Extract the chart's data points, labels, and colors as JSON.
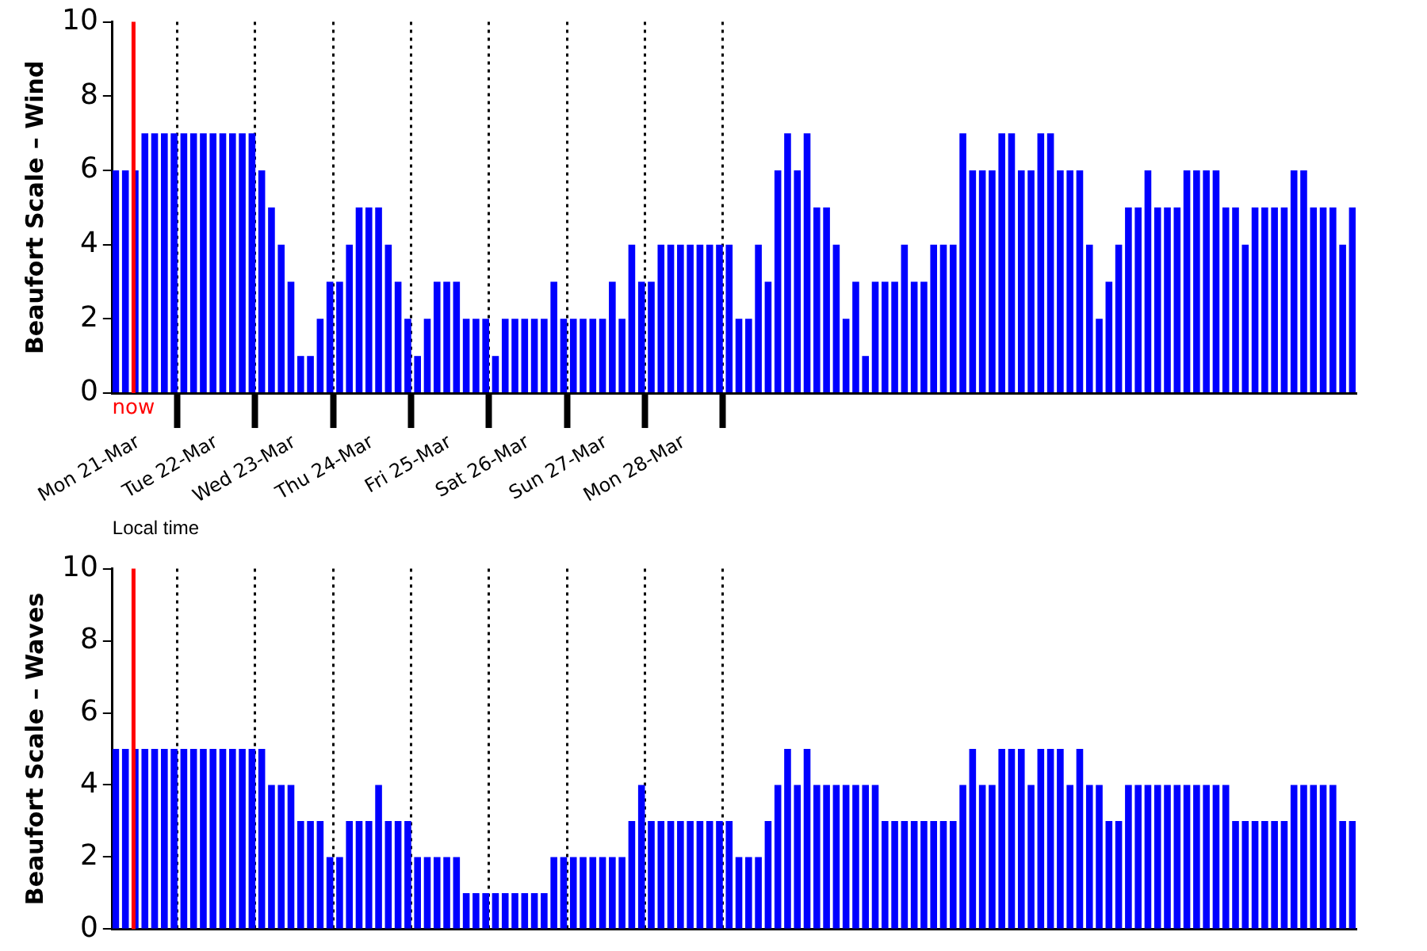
{
  "chart_data": [
    {
      "type": "bar",
      "ylabel": "Beaufort Scale – Wind",
      "xlabel": "Local time",
      "color": "#0000ff",
      "x": [
        "--03-20T17:00",
        "--03-20T20:00",
        "--03-20T23:00",
        "--03-21T02:00",
        "--03-21T05:00",
        "--03-21T08:00",
        "--03-21T11:00",
        "--03-21T14:00",
        "--03-21T17:00",
        "--03-21T20:00",
        "--03-21T23:00",
        "--03-22T02:00",
        "--03-22T05:00",
        "--03-22T08:00",
        "--03-22T11:00",
        "--03-22T14:00",
        "--03-22T17:00",
        "--03-22T20:00",
        "--03-22T23:00",
        "--03-23T02:00",
        "--03-23T05:00",
        "--03-23T08:00",
        "--03-23T11:00",
        "--03-23T14:00",
        "--03-23T17:00",
        "--03-23T20:00",
        "--03-23T23:00",
        "--03-24T02:00",
        "--03-24T05:00",
        "--03-24T08:00",
        "--03-24T11:00",
        "--03-24T14:00",
        "--03-24T17:00",
        "--03-24T20:00",
        "--03-24T23:00",
        "--03-25T02:00",
        "--03-25T05:00",
        "--03-25T08:00",
        "--03-25T11:00",
        "--03-25T14:00",
        "--03-25T17:00",
        "--03-25T20:00",
        "--03-25T23:00",
        "--03-26T02:00",
        "--03-26T05:00",
        "--03-26T08:00",
        "--03-26T11:00",
        "--03-26T14:00",
        "--03-26T17:00",
        "--03-26T20:00",
        "--03-26T23:00",
        "--03-27T02:00",
        "--03-27T05:00",
        "--03-27T08:00",
        "--03-27T11:00",
        "--03-27T14:00",
        "--03-27T17:00",
        "--03-27T20:00",
        "--03-27T23:00",
        "--03-28T02:00",
        "--03-28T05:00",
        "--03-28T08:00",
        "--03-28T11:00",
        "--03-28T14:00",
        "--03-28T17:00",
        "--03-28T20:00",
        "--03-28T23:00",
        "--03-29T02:00",
        "--03-29T05:00",
        "--03-29T08:00",
        "--03-29T11:00",
        "--03-29T14:00",
        "--03-29T17:00",
        "--03-29T20:00",
        "--03-29T23:00",
        "--03-30T02:00",
        "--03-30T05:00",
        "--03-30T08:00",
        "--03-30T11:00",
        "--03-30T14:00",
        "--03-30T17:00",
        "--03-30T20:00",
        "--03-30T23:00",
        "--03-31T02:00",
        "--03-31T05:00",
        "--03-31T08:00",
        "--03-31T11:00",
        "--03-31T14:00",
        "--03-31T17:00",
        "--03-31T20:00",
        "--03-31T23:00",
        "--04-01T02:00",
        "--04-01T05:00",
        "--04-01T08:00",
        "--04-01T11:00",
        "--04-01T14:00",
        "--04-01T17:00",
        "--04-01T20:00",
        "--04-01T23:00",
        "--04-02T02:00",
        "--04-02T05:00",
        "--04-02T08:00",
        "--04-02T11:00",
        "--04-02T14:00",
        "--04-02T17:00",
        "--04-02T20:00",
        "--04-02T23:00",
        "--04-03T02:00",
        "--04-03T05:00",
        "--04-03T08:00",
        "--04-03T11:00",
        "--04-03T14:00",
        "--04-03T17:00",
        "--04-03T20:00",
        "--04-03T23:00",
        "--04-04T02:00",
        "--04-04T05:00",
        "--04-04T08:00",
        "--04-04T11:00",
        "--04-04T14:00",
        "--04-04T17:00",
        "--04-04T20:00",
        "--04-04T23:00",
        "--04-05T02:00",
        "--04-05T05:00",
        "--04-05T08:00",
        "--04-05T11:00",
        "--04-05T14:00"
      ],
      "values": [
        6,
        6,
        6,
        7,
        7,
        7,
        7,
        7,
        7,
        7,
        7,
        7,
        7,
        7,
        7,
        6,
        5,
        4,
        3,
        1,
        1,
        2,
        3,
        3,
        4,
        5,
        5,
        5,
        4,
        3,
        2,
        1,
        2,
        3,
        3,
        3,
        2,
        2,
        2,
        1,
        2,
        2,
        2,
        2,
        2,
        3,
        2,
        2,
        2,
        2,
        2,
        3,
        2,
        4,
        3,
        3,
        4,
        4,
        4,
        4,
        4,
        4,
        4,
        4,
        2,
        2,
        4,
        3,
        6,
        7,
        6,
        7,
        5,
        5,
        4,
        2,
        3,
        1,
        3,
        3,
        3,
        4,
        3,
        3,
        4,
        4,
        4,
        7,
        6,
        6,
        6,
        7,
        7,
        6,
        6,
        7,
        7,
        6,
        6,
        6,
        4,
        2,
        3,
        4,
        5,
        5,
        6,
        5,
        5,
        5,
        6,
        6,
        6,
        6,
        5,
        5,
        4,
        5,
        5,
        5,
        5,
        6,
        6,
        5,
        5,
        5,
        4,
        5
      ],
      "xlim": [
        "--03-20T16:00",
        "--04-05T15:00"
      ],
      "xticks": [
        {
          "value": "--03-21",
          "label": "Mon 21-Mar"
        },
        {
          "value": "--03-22",
          "label": "Tue 22-Mar"
        },
        {
          "value": "--03-23",
          "label": "Wed 23-Mar"
        },
        {
          "value": "--03-24",
          "label": "Thu 24-Mar"
        },
        {
          "value": "--03-25",
          "label": "Fri 25-Mar"
        },
        {
          "value": "--03-26",
          "label": "Sat 26-Mar"
        },
        {
          "value": "--03-27",
          "label": "Sun 27-Mar"
        },
        {
          "value": "--03-28",
          "label": "Mon 28-Mar"
        }
      ],
      "ylim": [
        0,
        10
      ],
      "yticks": [
        0,
        2,
        4,
        6,
        8,
        10
      ],
      "grid": "x",
      "ref_lines": [
        {
          "axis": "x",
          "value": "--03-20T22:30",
          "label": "now",
          "color": "#ff0000"
        }
      ]
    },
    {
      "type": "bar",
      "ylabel": "Beaufort Scale – Waves",
      "color": "#0000ff",
      "x": [
        "--03-20T17:00",
        "--03-20T20:00",
        "--03-20T23:00",
        "--03-21T02:00",
        "--03-21T05:00",
        "--03-21T08:00",
        "--03-21T11:00",
        "--03-21T14:00",
        "--03-21T17:00",
        "--03-21T20:00",
        "--03-21T23:00",
        "--03-22T02:00",
        "--03-22T05:00",
        "--03-22T08:00",
        "--03-22T11:00",
        "--03-22T14:00",
        "--03-22T17:00",
        "--03-22T20:00",
        "--03-22T23:00",
        "--03-23T02:00",
        "--03-23T05:00",
        "--03-23T08:00",
        "--03-23T11:00",
        "--03-23T14:00",
        "--03-23T17:00",
        "--03-23T20:00",
        "--03-23T23:00",
        "--03-24T02:00",
        "--03-24T05:00",
        "--03-24T08:00",
        "--03-24T11:00",
        "--03-24T14:00",
        "--03-24T17:00",
        "--03-24T20:00",
        "--03-24T23:00",
        "--03-25T02:00",
        "--03-25T05:00",
        "--03-25T08:00",
        "--03-25T11:00",
        "--03-25T14:00",
        "--03-25T17:00",
        "--03-25T20:00",
        "--03-25T23:00",
        "--03-26T02:00",
        "--03-26T05:00",
        "--03-26T08:00",
        "--03-26T11:00",
        "--03-26T14:00",
        "--03-26T17:00",
        "--03-26T20:00",
        "--03-26T23:00",
        "--03-27T02:00",
        "--03-27T05:00",
        "--03-27T08:00",
        "--03-27T11:00",
        "--03-27T14:00",
        "--03-27T17:00",
        "--03-27T20:00",
        "--03-27T23:00",
        "--03-28T02:00",
        "--03-28T05:00",
        "--03-28T08:00",
        "--03-28T11:00",
        "--03-28T14:00",
        "--03-28T17:00",
        "--03-28T20:00",
        "--03-28T23:00",
        "--03-29T02:00",
        "--03-29T05:00",
        "--03-29T08:00",
        "--03-29T11:00",
        "--03-29T14:00",
        "--03-29T17:00",
        "--03-29T20:00",
        "--03-29T23:00",
        "--03-30T02:00",
        "--03-30T05:00",
        "--03-30T08:00",
        "--03-30T11:00",
        "--03-30T14:00",
        "--03-30T17:00",
        "--03-30T20:00",
        "--03-30T23:00",
        "--03-31T02:00",
        "--03-31T05:00",
        "--03-31T08:00",
        "--03-31T11:00",
        "--03-31T14:00",
        "--03-31T17:00",
        "--03-31T20:00",
        "--03-31T23:00",
        "--04-01T02:00",
        "--04-01T05:00",
        "--04-01T08:00",
        "--04-01T11:00",
        "--04-01T14:00",
        "--04-01T17:00",
        "--04-01T20:00",
        "--04-01T23:00",
        "--04-02T02:00",
        "--04-02T05:00",
        "--04-02T08:00",
        "--04-02T11:00",
        "--04-02T14:00",
        "--04-02T17:00",
        "--04-02T20:00",
        "--04-02T23:00",
        "--04-03T02:00",
        "--04-03T05:00",
        "--04-03T08:00",
        "--04-03T11:00",
        "--04-03T14:00",
        "--04-03T17:00",
        "--04-03T20:00",
        "--04-03T23:00",
        "--04-04T02:00",
        "--04-04T05:00",
        "--04-04T08:00",
        "--04-04T11:00",
        "--04-04T14:00",
        "--04-04T17:00",
        "--04-04T20:00",
        "--04-04T23:00",
        "--04-05T02:00",
        "--04-05T05:00",
        "--04-05T08:00",
        "--04-05T11:00",
        "--04-05T14:00"
      ],
      "values": [
        5,
        5,
        5,
        5,
        5,
        5,
        5,
        5,
        5,
        5,
        5,
        5,
        5,
        5,
        5,
        5,
        4,
        4,
        4,
        3,
        3,
        3,
        2,
        2,
        3,
        3,
        3,
        4,
        3,
        3,
        3,
        2,
        2,
        2,
        2,
        2,
        1,
        1,
        1,
        1,
        1,
        1,
        1,
        1,
        1,
        2,
        2,
        2,
        2,
        2,
        2,
        2,
        2,
        3,
        4,
        3,
        3,
        3,
        3,
        3,
        3,
        3,
        3,
        3,
        2,
        2,
        2,
        3,
        4,
        5,
        4,
        5,
        4,
        4,
        4,
        4,
        4,
        4,
        4,
        3,
        3,
        3,
        3,
        3,
        3,
        3,
        3,
        4,
        5,
        4,
        4,
        5,
        5,
        5,
        4,
        5,
        5,
        5,
        4,
        5,
        4,
        4,
        3,
        3,
        4,
        4,
        4,
        4,
        4,
        4,
        4,
        4,
        4,
        4,
        4,
        3,
        3,
        3,
        3,
        3,
        3,
        4,
        4,
        4,
        4,
        4,
        3,
        3
      ],
      "xlim": [
        "--03-20T16:00",
        "--04-05T15:00"
      ],
      "xticks": [
        {
          "value": "--03-21",
          "label": null
        },
        {
          "value": "--03-22",
          "label": null
        },
        {
          "value": "--03-23",
          "label": null
        },
        {
          "value": "--03-24",
          "label": null
        },
        {
          "value": "--03-25",
          "label": null
        },
        {
          "value": "--03-26",
          "label": null
        },
        {
          "value": "--03-27",
          "label": null
        },
        {
          "value": "--03-28",
          "label": null
        }
      ],
      "ylim": [
        0,
        10
      ],
      "yticks": [
        0,
        2,
        4,
        6,
        8,
        10
      ],
      "grid": "x",
      "tick_labels": "y",
      "ref_lines": [
        {
          "axis": "x",
          "value": "--03-20T22:30",
          "color": "#ff0000"
        }
      ]
    }
  ]
}
